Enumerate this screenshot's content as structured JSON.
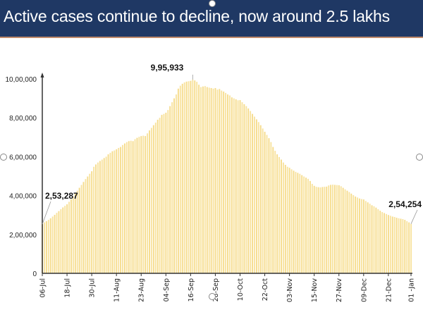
{
  "header": {
    "title": "Active cases continue to decline, now around 2.5 lakhs"
  },
  "colors": {
    "header_bg": "#1f3864",
    "bar": "#f6dc8c",
    "axis": "#333333"
  },
  "chart_data": {
    "type": "bar",
    "title": "Active cases continue to decline, now around 2.5 lakhs",
    "xlabel": "",
    "ylabel": "",
    "x_start": "06-Jul",
    "x_end": "01-Jan",
    "ylim": [
      0,
      1000000
    ],
    "grid": false,
    "y_ticks": [
      {
        "value": 0,
        "label": "0"
      },
      {
        "value": 200000,
        "label": "2,00,000"
      },
      {
        "value": 400000,
        "label": "4,00,000"
      },
      {
        "value": 600000,
        "label": "6,00,000"
      },
      {
        "value": 800000,
        "label": "8,00,000"
      },
      {
        "value": 1000000,
        "label": "10,00,000"
      }
    ],
    "x_ticks": [
      {
        "index": 0,
        "label": "06-Jul"
      },
      {
        "index": 12,
        "label": "18-Jul"
      },
      {
        "index": 24,
        "label": "30-Jul"
      },
      {
        "index": 36,
        "label": "11-Aug"
      },
      {
        "index": 48,
        "label": "23-Aug"
      },
      {
        "index": 60,
        "label": "04-Sep"
      },
      {
        "index": 72,
        "label": "16-Sep"
      },
      {
        "index": 84,
        "label": "28-Sep"
      },
      {
        "index": 96,
        "label": "10-Oct"
      },
      {
        "index": 108,
        "label": "22-Oct"
      },
      {
        "index": 120,
        "label": "03-Nov"
      },
      {
        "index": 132,
        "label": "15-Nov"
      },
      {
        "index": 144,
        "label": "27-Nov"
      },
      {
        "index": 156,
        "label": "09-Dec"
      },
      {
        "index": 168,
        "label": "21-Dec"
      },
      {
        "index": 179,
        "label": "01 -Jan"
      }
    ],
    "annotations": [
      {
        "index": 0,
        "label": "2,53,287"
      },
      {
        "index": 73,
        "label": "9,95,933"
      },
      {
        "index": 179,
        "label": "2,54,254"
      }
    ],
    "values": [
      253287,
      262000,
      268000,
      275000,
      283000,
      292000,
      301000,
      311000,
      320000,
      330000,
      339000,
      347000,
      355000,
      368000,
      381000,
      394000,
      410000,
      425000,
      440000,
      455000,
      470000,
      485000,
      498000,
      512000,
      525000,
      548000,
      560000,
      570000,
      578000,
      585000,
      593000,
      600000,
      612000,
      620000,
      628000,
      632000,
      638000,
      645000,
      650000,
      660000,
      668000,
      675000,
      680000,
      682000,
      680000,
      690000,
      697000,
      702000,
      706000,
      708000,
      706000,
      720000,
      735000,
      748000,
      762000,
      775000,
      790000,
      800000,
      815000,
      820000,
      826000,
      840000,
      860000,
      880000,
      900000,
      920000,
      950000,
      965000,
      975000,
      982000,
      986000,
      988000,
      990000,
      995933,
      992000,
      985000,
      970000,
      958000,
      961000,
      963000,
      958000,
      955000,
      953000,
      950000,
      953000,
      945000,
      948000,
      940000,
      935000,
      928000,
      920000,
      915000,
      905000,
      900000,
      895000,
      890000,
      891000,
      880000,
      870000,
      860000,
      848000,
      835000,
      820000,
      806000,
      792000,
      778000,
      762000,
      745000,
      728000,
      712000,
      695000,
      675000,
      650000,
      630000,
      612000,
      598000,
      585000,
      570000,
      558000,
      548000,
      543000,
      535000,
      528000,
      522000,
      517000,
      512000,
      505000,
      498000,
      492000,
      486000,
      475000,
      460000,
      450000,
      445000,
      443000,
      442000,
      444000,
      445000,
      446000,
      452000,
      455000,
      456000,
      455000,
      454000,
      453000,
      448000,
      440000,
      432000,
      425000,
      418000,
      410000,
      402000,
      395000,
      390000,
      385000,
      382000,
      380000,
      372000,
      365000,
      358000,
      350000,
      345000,
      338000,
      330000,
      322000,
      315000,
      310000,
      305000,
      300000,
      296000,
      292000,
      290000,
      286000,
      283000,
      281000,
      279000,
      275000,
      268000,
      262000,
      254254
    ]
  }
}
